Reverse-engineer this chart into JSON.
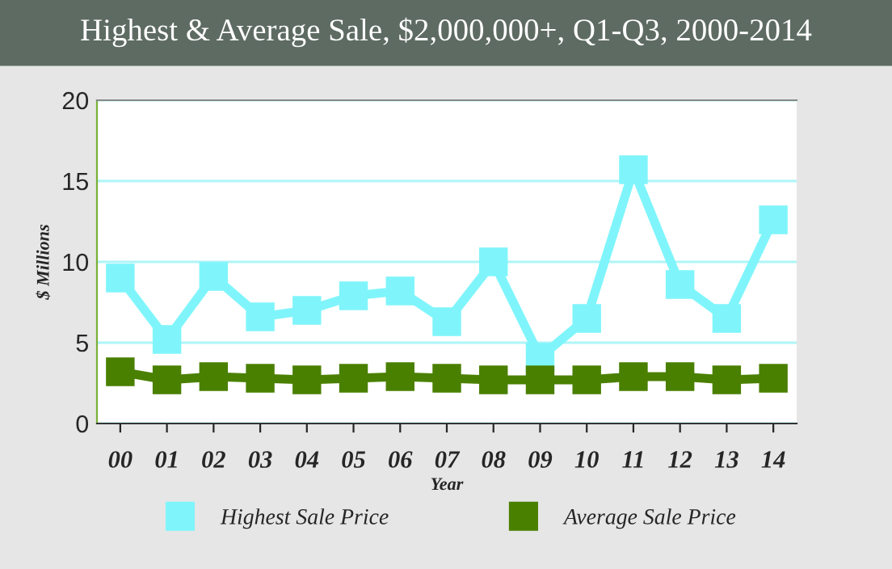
{
  "chart_data": {
    "type": "line",
    "title": "Highest & Average Sale, $2,000,000+, Q1-Q3, 2000-2014",
    "xlabel": "Year",
    "ylabel": "$ Millions",
    "categories": [
      "00",
      "01",
      "02",
      "03",
      "04",
      "05",
      "06",
      "07",
      "08",
      "09",
      "10",
      "11",
      "12",
      "13",
      "14"
    ],
    "series": [
      {
        "name": "Highest Sale Price",
        "color": "#7ff5fb",
        "values": [
          9.0,
          5.2,
          9.1,
          6.6,
          7.0,
          7.9,
          8.2,
          6.3,
          10.0,
          4.1,
          6.5,
          15.7,
          8.6,
          6.5,
          12.6
        ]
      },
      {
        "name": "Average Sale Price",
        "color": "#4a8000",
        "values": [
          3.2,
          2.7,
          2.9,
          2.8,
          2.7,
          2.8,
          2.9,
          2.8,
          2.7,
          2.7,
          2.7,
          2.9,
          2.9,
          2.7,
          2.8
        ]
      }
    ],
    "ylim": [
      0,
      20
    ],
    "yticks": [
      0,
      5,
      10,
      15,
      20
    ],
    "grid": "y",
    "legend": "bottom",
    "marker": "square",
    "line_style": "solid"
  }
}
